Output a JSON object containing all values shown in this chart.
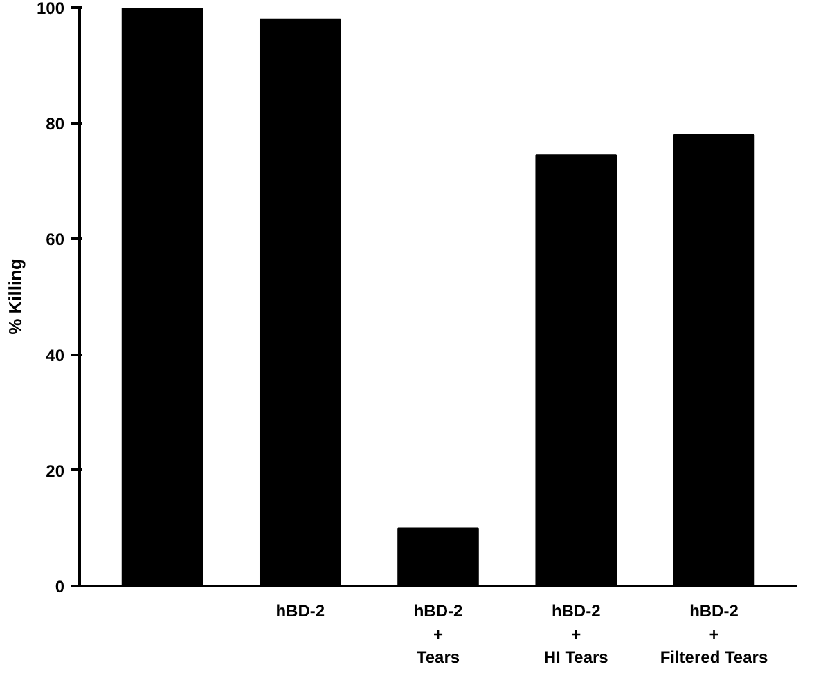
{
  "chart_data": {
    "type": "bar",
    "ylabel": "% Killing",
    "categories": [
      null,
      "hBD-2",
      "hBD-2\n+\nTears",
      "hBD-2\n+\nHI Tears",
      "hBD-2\n+\nFiltered Tears"
    ],
    "values": [
      100,
      98,
      10,
      74.5,
      78
    ],
    "color": "#000000",
    "ylim": [
      0,
      100
    ],
    "yticks": [
      0,
      20,
      40,
      60,
      80,
      100
    ],
    "grid": false
  }
}
